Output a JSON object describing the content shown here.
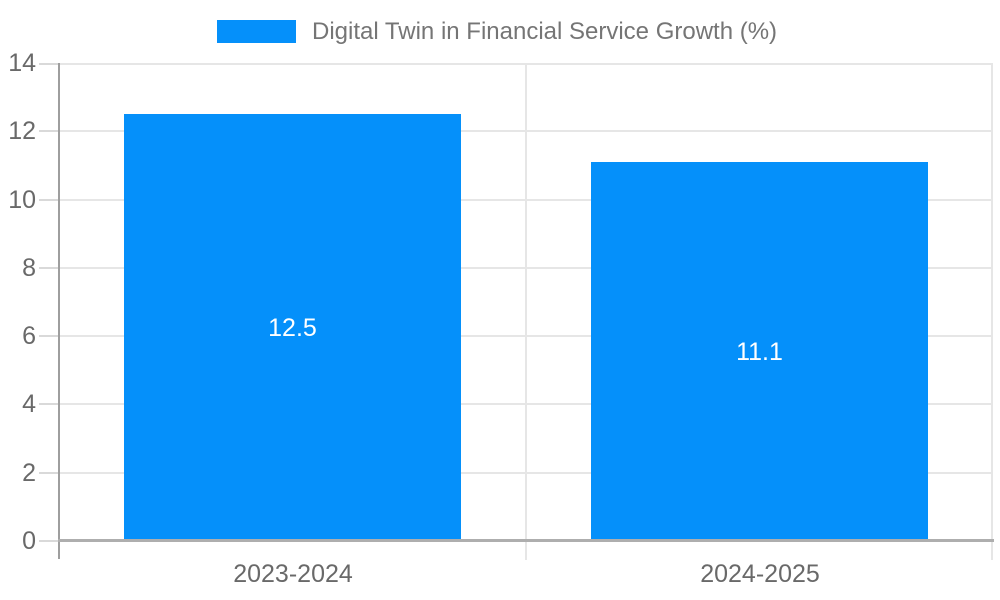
{
  "chart_data": {
    "type": "bar",
    "title": "Digital Twin in Financial Service Growth (%)",
    "legend": {
      "position": "top",
      "label": "Digital Twin in Financial Service Growth (%)"
    },
    "categories": [
      "2023-2024",
      "2024-2025"
    ],
    "series": [
      {
        "name": "Digital Twin in Financial Service Growth (%)",
        "values": [
          12.5,
          11.1
        ]
      }
    ],
    "value_labels": [
      "12.5",
      "11.1"
    ],
    "ylim": [
      0,
      14
    ],
    "yticks": [
      0,
      2,
      4,
      6,
      8,
      10,
      12,
      14
    ],
    "grid": true,
    "colors": {
      "bar": "#0590fa",
      "gridline": "#e6e6e6",
      "divider": "#e6e6e6",
      "axis_line": "#9e9e9e",
      "baseline": "#aeaeae",
      "tick_mark": "#d9d9d9",
      "tick_label": "#696969",
      "legend_text": "#757575",
      "value_label": "#ffffff",
      "background": "#ffffff"
    }
  }
}
